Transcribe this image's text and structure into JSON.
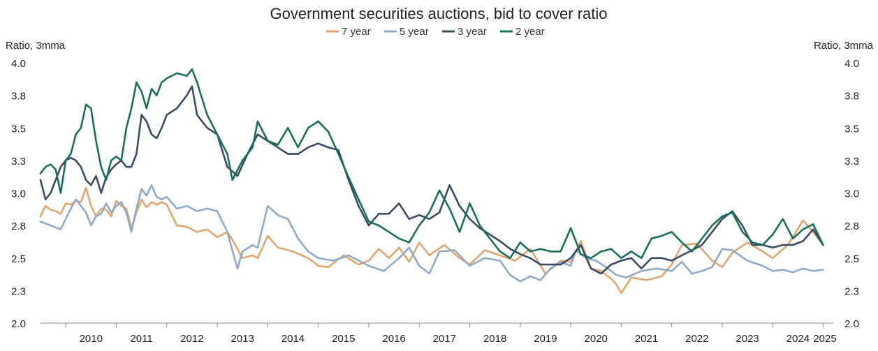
{
  "chart_data": {
    "type": "line",
    "title": "Government securities auctions, bid to cover ratio",
    "ylabel_left": "Ratio, 3mma",
    "ylabel_right": "Ratio, 3mma",
    "ylim": [
      2.0,
      4.0
    ],
    "yticks": [
      "2.0",
      "2.3",
      "2.5",
      "2.8",
      "3.0",
      "3.3",
      "3.5",
      "3.8",
      "4.0"
    ],
    "ytick_values": [
      2.0,
      2.25,
      2.5,
      2.75,
      3.0,
      3.25,
      3.5,
      3.75,
      4.0
    ],
    "xlim": [
      2009.5,
      2025.2
    ],
    "xticks": [
      "2010",
      "2011",
      "2012",
      "2013",
      "2014",
      "2015",
      "2016",
      "2017",
      "2018",
      "2019",
      "2020",
      "2021",
      "2022",
      "2023",
      "2024",
      "2025"
    ],
    "grid": false,
    "legend_position": "top-center",
    "series": [
      {
        "name": "7 year",
        "color": "#E3A56F",
        "x": [
          2009.5,
          2009.6,
          2009.7,
          2009.8,
          2009.9,
          2010.0,
          2010.1,
          2010.2,
          2010.3,
          2010.4,
          2010.5,
          2010.6,
          2010.7,
          2010.8,
          2010.9,
          2011.0,
          2011.1,
          2011.2,
          2011.3,
          2011.4,
          2011.5,
          2011.6,
          2011.7,
          2011.8,
          2011.9,
          2012.0,
          2012.2,
          2012.4,
          2012.6,
          2012.8,
          2013.0,
          2013.2,
          2013.3,
          2013.5,
          2013.7,
          2013.8,
          2014.0,
          2014.2,
          2014.5,
          2014.8,
          2015.0,
          2015.2,
          2015.5,
          2015.8,
          2016.0,
          2016.2,
          2016.4,
          2016.6,
          2016.8,
          2017.0,
          2017.2,
          2017.5,
          2017.8,
          2018.0,
          2018.3,
          2018.6,
          2018.9,
          2019.2,
          2019.5,
          2019.8,
          2020.0,
          2020.2,
          2020.4,
          2020.6,
          2020.8,
          2020.9,
          2021.0,
          2021.2,
          2021.5,
          2021.8,
          2022.0,
          2022.2,
          2022.5,
          2022.8,
          2023.0,
          2023.2,
          2023.5,
          2023.8,
          2024.0,
          2024.3,
          2024.6,
          2024.8,
          2025.0
        ],
        "values": [
          2.82,
          2.9,
          2.87,
          2.86,
          2.84,
          2.92,
          2.91,
          2.94,
          2.93,
          3.04,
          2.9,
          2.82,
          2.88,
          2.87,
          2.82,
          2.94,
          2.9,
          2.88,
          2.73,
          2.85,
          2.95,
          2.89,
          2.93,
          2.91,
          2.93,
          2.91,
          2.75,
          2.74,
          2.7,
          2.72,
          2.66,
          2.7,
          2.64,
          2.5,
          2.52,
          2.5,
          2.67,
          2.58,
          2.55,
          2.5,
          2.44,
          2.43,
          2.52,
          2.45,
          2.48,
          2.57,
          2.5,
          2.58,
          2.47,
          2.62,
          2.52,
          2.6,
          2.5,
          2.45,
          2.56,
          2.52,
          2.48,
          2.57,
          2.38,
          2.48,
          2.47,
          2.63,
          2.42,
          2.4,
          2.34,
          2.3,
          2.23,
          2.35,
          2.33,
          2.36,
          2.45,
          2.6,
          2.61,
          2.48,
          2.43,
          2.54,
          2.62,
          2.55,
          2.5,
          2.6,
          2.79,
          2.7,
          2.6
        ]
      },
      {
        "name": "5 year",
        "color": "#8FAAC8",
        "x": [
          2009.5,
          2009.7,
          2009.9,
          2010.0,
          2010.1,
          2010.2,
          2010.3,
          2010.4,
          2010.5,
          2010.6,
          2010.7,
          2010.8,
          2010.9,
          2011.0,
          2011.1,
          2011.2,
          2011.3,
          2011.4,
          2011.5,
          2011.6,
          2011.7,
          2011.8,
          2011.9,
          2012.0,
          2012.2,
          2012.4,
          2012.6,
          2012.8,
          2013.0,
          2013.2,
          2013.4,
          2013.5,
          2013.7,
          2013.8,
          2014.0,
          2014.2,
          2014.4,
          2014.6,
          2014.8,
          2015.0,
          2015.3,
          2015.6,
          2016.0,
          2016.3,
          2016.6,
          2016.8,
          2017.0,
          2017.2,
          2017.4,
          2017.7,
          2018.0,
          2018.3,
          2018.6,
          2018.8,
          2019.0,
          2019.2,
          2019.4,
          2019.6,
          2019.8,
          2020.0,
          2020.1,
          2020.3,
          2020.5,
          2020.7,
          2020.9,
          2021.1,
          2021.4,
          2021.7,
          2022.0,
          2022.2,
          2022.4,
          2022.6,
          2022.8,
          2023.0,
          2023.2,
          2023.5,
          2023.8,
          2024.0,
          2024.2,
          2024.4,
          2024.6,
          2024.8,
          2025.0
        ],
        "values": [
          2.78,
          2.75,
          2.72,
          2.8,
          2.88,
          2.95,
          2.9,
          2.85,
          2.75,
          2.82,
          2.84,
          2.92,
          2.85,
          2.9,
          2.93,
          2.85,
          2.7,
          2.88,
          3.03,
          2.98,
          3.06,
          2.97,
          2.95,
          2.97,
          2.88,
          2.9,
          2.86,
          2.88,
          2.86,
          2.7,
          2.42,
          2.55,
          2.6,
          2.58,
          2.9,
          2.83,
          2.8,
          2.65,
          2.55,
          2.5,
          2.48,
          2.52,
          2.44,
          2.4,
          2.5,
          2.58,
          2.44,
          2.38,
          2.55,
          2.56,
          2.44,
          2.5,
          2.48,
          2.37,
          2.32,
          2.36,
          2.33,
          2.42,
          2.47,
          2.44,
          2.56,
          2.5,
          2.48,
          2.43,
          2.37,
          2.35,
          2.4,
          2.42,
          2.4,
          2.47,
          2.38,
          2.4,
          2.43,
          2.57,
          2.56,
          2.48,
          2.44,
          2.4,
          2.41,
          2.39,
          2.42,
          2.4,
          2.41
        ]
      },
      {
        "name": "3 year",
        "color": "#3B4B63",
        "x": [
          2009.5,
          2009.6,
          2009.7,
          2009.8,
          2009.9,
          2010.0,
          2010.1,
          2010.2,
          2010.3,
          2010.4,
          2010.5,
          2010.6,
          2010.7,
          2010.8,
          2010.9,
          2011.0,
          2011.1,
          2011.2,
          2011.3,
          2011.4,
          2011.5,
          2011.6,
          2011.7,
          2011.8,
          2011.9,
          2012.0,
          2012.2,
          2012.4,
          2012.5,
          2012.6,
          2012.8,
          2013.0,
          2013.2,
          2013.4,
          2013.6,
          2013.8,
          2014.0,
          2014.2,
          2014.4,
          2014.6,
          2014.8,
          2015.0,
          2015.2,
          2015.4,
          2015.6,
          2015.8,
          2016.0,
          2016.2,
          2016.4,
          2016.6,
          2016.8,
          2017.0,
          2017.2,
          2017.4,
          2017.6,
          2017.8,
          2018.0,
          2018.2,
          2018.4,
          2018.6,
          2018.8,
          2019.0,
          2019.2,
          2019.4,
          2019.6,
          2019.8,
          2020.0,
          2020.2,
          2020.4,
          2020.6,
          2020.8,
          2021.0,
          2021.2,
          2021.4,
          2021.6,
          2021.8,
          2022.0,
          2022.2,
          2022.4,
          2022.6,
          2022.8,
          2023.0,
          2023.2,
          2023.4,
          2023.6,
          2023.8,
          2024.0,
          2024.2,
          2024.4,
          2024.6,
          2024.8,
          2025.0
        ],
        "values": [
          3.1,
          2.95,
          3.0,
          3.1,
          3.2,
          3.25,
          3.27,
          3.25,
          3.2,
          3.1,
          3.06,
          3.13,
          3.0,
          3.12,
          3.18,
          3.22,
          3.25,
          3.2,
          3.2,
          3.3,
          3.6,
          3.55,
          3.45,
          3.42,
          3.5,
          3.6,
          3.65,
          3.75,
          3.82,
          3.6,
          3.5,
          3.45,
          3.2,
          3.13,
          3.3,
          3.45,
          3.4,
          3.35,
          3.3,
          3.3,
          3.35,
          3.38,
          3.35,
          3.33,
          3.1,
          2.9,
          2.75,
          2.84,
          2.84,
          2.92,
          2.8,
          2.83,
          2.8,
          2.85,
          3.06,
          2.9,
          2.8,
          2.73,
          2.68,
          2.63,
          2.57,
          2.53,
          2.5,
          2.45,
          2.45,
          2.45,
          2.5,
          2.6,
          2.42,
          2.38,
          2.45,
          2.48,
          2.5,
          2.42,
          2.5,
          2.5,
          2.48,
          2.52,
          2.56,
          2.6,
          2.7,
          2.8,
          2.86,
          2.75,
          2.6,
          2.6,
          2.58,
          2.6,
          2.6,
          2.63,
          2.72,
          2.6
        ]
      },
      {
        "name": "2 year",
        "color": "#17705A",
        "x": [
          2009.5,
          2009.6,
          2009.7,
          2009.8,
          2009.9,
          2010.0,
          2010.1,
          2010.2,
          2010.3,
          2010.4,
          2010.5,
          2010.6,
          2010.7,
          2010.8,
          2010.9,
          2011.0,
          2011.1,
          2011.2,
          2011.3,
          2011.4,
          2011.5,
          2011.6,
          2011.7,
          2011.8,
          2011.9,
          2012.0,
          2012.2,
          2012.4,
          2012.5,
          2012.6,
          2012.8,
          2013.0,
          2013.2,
          2013.3,
          2013.5,
          2013.7,
          2013.8,
          2014.0,
          2014.2,
          2014.4,
          2014.6,
          2014.8,
          2015.0,
          2015.2,
          2015.4,
          2015.6,
          2015.8,
          2016.0,
          2016.2,
          2016.4,
          2016.6,
          2016.8,
          2017.0,
          2017.2,
          2017.4,
          2017.6,
          2017.8,
          2018.0,
          2018.2,
          2018.4,
          2018.6,
          2018.8,
          2019.0,
          2019.2,
          2019.4,
          2019.6,
          2019.8,
          2020.0,
          2020.2,
          2020.4,
          2020.6,
          2020.8,
          2021.0,
          2021.2,
          2021.4,
          2021.6,
          2021.8,
          2022.0,
          2022.2,
          2022.4,
          2022.6,
          2022.8,
          2023.0,
          2023.2,
          2023.4,
          2023.6,
          2023.8,
          2024.0,
          2024.2,
          2024.4,
          2024.6,
          2024.8,
          2025.0
        ],
        "values": [
          3.15,
          3.2,
          3.22,
          3.18,
          3.0,
          3.25,
          3.3,
          3.45,
          3.5,
          3.68,
          3.65,
          3.4,
          3.2,
          3.1,
          3.25,
          3.28,
          3.25,
          3.5,
          3.65,
          3.85,
          3.78,
          3.65,
          3.8,
          3.75,
          3.85,
          3.88,
          3.92,
          3.9,
          3.95,
          3.85,
          3.6,
          3.45,
          3.3,
          3.1,
          3.25,
          3.35,
          3.55,
          3.4,
          3.37,
          3.5,
          3.35,
          3.5,
          3.55,
          3.47,
          3.3,
          3.12,
          2.95,
          2.78,
          2.75,
          2.7,
          2.65,
          2.62,
          2.75,
          2.85,
          3.02,
          2.88,
          2.7,
          2.92,
          2.75,
          2.65,
          2.55,
          2.5,
          2.62,
          2.55,
          2.57,
          2.55,
          2.55,
          2.73,
          2.53,
          2.5,
          2.55,
          2.57,
          2.5,
          2.55,
          2.5,
          2.65,
          2.67,
          2.7,
          2.62,
          2.55,
          2.65,
          2.75,
          2.82,
          2.85,
          2.7,
          2.62,
          2.6,
          2.68,
          2.8,
          2.65,
          2.72,
          2.76,
          2.6
        ]
      }
    ]
  }
}
